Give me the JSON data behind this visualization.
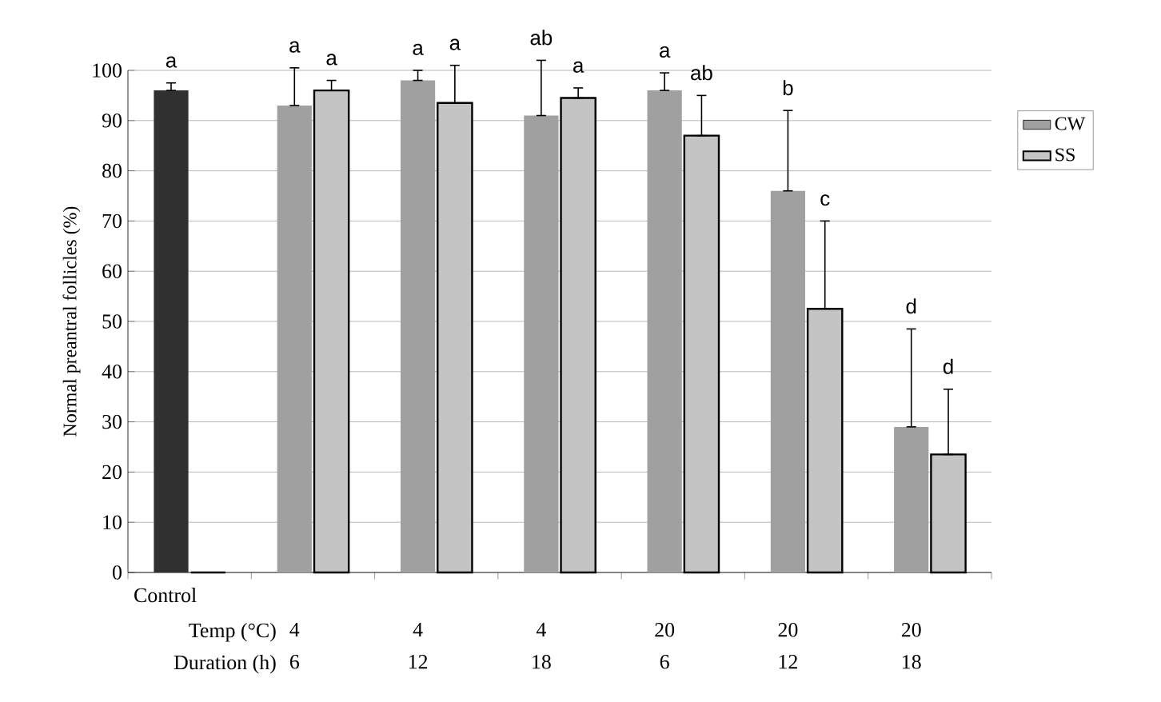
{
  "chart_data": {
    "type": "bar",
    "ylabel": "Normal preantral follicles  (%)",
    "categories": [
      "Control",
      "4",
      "4",
      "4",
      "20",
      "20",
      "20"
    ],
    "series": [
      {
        "name": "CW",
        "color": "#a0a0a0",
        "colors": [
          "#303030",
          "#a0a0a0",
          "#a0a0a0",
          "#a0a0a0",
          "#a0a0a0",
          "#a0a0a0",
          "#a0a0a0"
        ],
        "values": [
          96,
          93,
          98,
          91,
          96,
          76,
          29
        ],
        "errors": [
          [
            96,
            97.5
          ],
          [
            93,
            100.5
          ],
          [
            98,
            100
          ],
          [
            91,
            102
          ],
          [
            96,
            99.5
          ],
          [
            76,
            92
          ],
          [
            29,
            48.5
          ]
        ]
      },
      {
        "name": "SS",
        "color": "#c4c4c4",
        "values": [
          0,
          96,
          93.5,
          94.5,
          87,
          52.5,
          23.5
        ],
        "errors": [
          null,
          [
            96,
            98
          ],
          [
            93.5,
            101
          ],
          [
            94.5,
            96.5
          ],
          [
            87,
            95
          ],
          [
            52.5,
            70
          ],
          [
            23.5,
            36.5
          ]
        ]
      }
    ],
    "ylim": [
      0,
      100
    ],
    "yticks": [
      0,
      10,
      20,
      30,
      40,
      50,
      60,
      70,
      80,
      90,
      100
    ],
    "grid": "y",
    "legend": "right",
    "annotations": [
      "Temp (°C)",
      "Duration  (h)",
      "6",
      "12",
      "18",
      "6",
      "12",
      "18",
      "a",
      "a",
      "a",
      "a",
      "a",
      "ab",
      "a",
      "a",
      "ab",
      "b",
      "c",
      "d",
      "d"
    ]
  }
}
